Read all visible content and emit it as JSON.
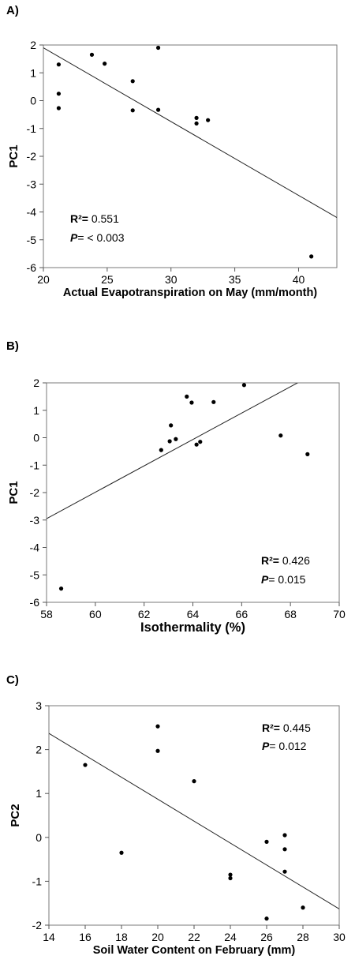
{
  "chart_data": [
    {
      "type": "scatter",
      "panel": "A)",
      "xlabel": "Actual  Evapotranspiration on May (mm/month)",
      "ylabel": "PC1",
      "xlim": [
        20,
        43
      ],
      "ylim": [
        -6,
        2
      ],
      "xticks": [
        20,
        25,
        30,
        35,
        40
      ],
      "yticks": [
        -6,
        -5,
        -4,
        -3,
        -2,
        -1,
        0,
        1,
        2
      ],
      "points": [
        {
          "x": 21.2,
          "y": 1.3
        },
        {
          "x": 21.2,
          "y": 0.25
        },
        {
          "x": 21.2,
          "y": -0.27
        },
        {
          "x": 23.8,
          "y": 1.65
        },
        {
          "x": 24.8,
          "y": 1.33
        },
        {
          "x": 27.0,
          "y": 0.7
        },
        {
          "x": 27.0,
          "y": -0.35
        },
        {
          "x": 29.0,
          "y": 1.9
        },
        {
          "x": 29.0,
          "y": -0.33
        },
        {
          "x": 32.0,
          "y": -0.62
        },
        {
          "x": 32.0,
          "y": -0.82
        },
        {
          "x": 32.9,
          "y": -0.7
        },
        {
          "x": 41.0,
          "y": -5.6
        }
      ],
      "fit_line": {
        "x": [
          20,
          43
        ],
        "y": [
          1.9,
          -4.2
        ]
      },
      "stats": {
        "r2_label": "R²=",
        "r2_value": " 0.551",
        "p_label": "P",
        "p_value": "= < 0.003"
      },
      "stats_placement": "bottom-left"
    },
    {
      "type": "scatter",
      "panel": "B)",
      "xlabel": "Isothermality (%)",
      "ylabel": "PC1",
      "xlim": [
        58,
        70
      ],
      "ylim": [
        -6,
        2
      ],
      "xticks": [
        58,
        60,
        62,
        64,
        66,
        68,
        70
      ],
      "yticks": [
        -6,
        -5,
        -4,
        -3,
        -2,
        -1,
        0,
        1,
        2
      ],
      "points": [
        {
          "x": 58.6,
          "y": -5.5
        },
        {
          "x": 62.7,
          "y": -0.45
        },
        {
          "x": 63.05,
          "y": -0.13
        },
        {
          "x": 63.1,
          "y": 0.45
        },
        {
          "x": 63.3,
          "y": -0.05
        },
        {
          "x": 63.75,
          "y": 1.5
        },
        {
          "x": 63.95,
          "y": 1.28
        },
        {
          "x": 64.15,
          "y": -0.25
        },
        {
          "x": 64.3,
          "y": -0.15
        },
        {
          "x": 64.85,
          "y": 1.3
        },
        {
          "x": 66.1,
          "y": 1.92
        },
        {
          "x": 67.6,
          "y": 0.08
        },
        {
          "x": 68.7,
          "y": -0.6
        }
      ],
      "fit_line": {
        "x": [
          58,
          68.5
        ],
        "y": [
          -2.95,
          2.1
        ]
      },
      "stats": {
        "r2_label": "R²=",
        "r2_value": " 0.426",
        "p_label": "P",
        "p_value": "= 0.015"
      },
      "stats_placement": "bottom-right"
    },
    {
      "type": "scatter",
      "panel": "C)",
      "xlabel": "Soil Water Content on February (mm)",
      "ylabel": "PC2",
      "xlim": [
        14,
        30
      ],
      "ylim": [
        -2,
        3
      ],
      "xticks": [
        14,
        16,
        18,
        20,
        22,
        24,
        26,
        28,
        30
      ],
      "yticks": [
        -2,
        -1,
        0,
        1,
        2,
        3
      ],
      "points": [
        {
          "x": 16.0,
          "y": 1.65
        },
        {
          "x": 18.0,
          "y": -0.35
        },
        {
          "x": 20.0,
          "y": 2.53
        },
        {
          "x": 20.0,
          "y": 1.97
        },
        {
          "x": 22.0,
          "y": 1.28
        },
        {
          "x": 24.0,
          "y": -0.85
        },
        {
          "x": 24.0,
          "y": -0.93
        },
        {
          "x": 26.0,
          "y": -0.1
        },
        {
          "x": 26.0,
          "y": -1.85
        },
        {
          "x": 27.0,
          "y": 0.05
        },
        {
          "x": 27.0,
          "y": -0.27
        },
        {
          "x": 27.0,
          "y": -0.78
        },
        {
          "x": 28.0,
          "y": -1.6
        }
      ],
      "fit_line": {
        "x": [
          14,
          30
        ],
        "y": [
          2.37,
          -1.63
        ]
      },
      "stats": {
        "r2_label": "R²=",
        "r2_value": " 0.445",
        "p_label": "P",
        "p_value": "= 0.012"
      },
      "stats_placement": "top-right"
    }
  ]
}
